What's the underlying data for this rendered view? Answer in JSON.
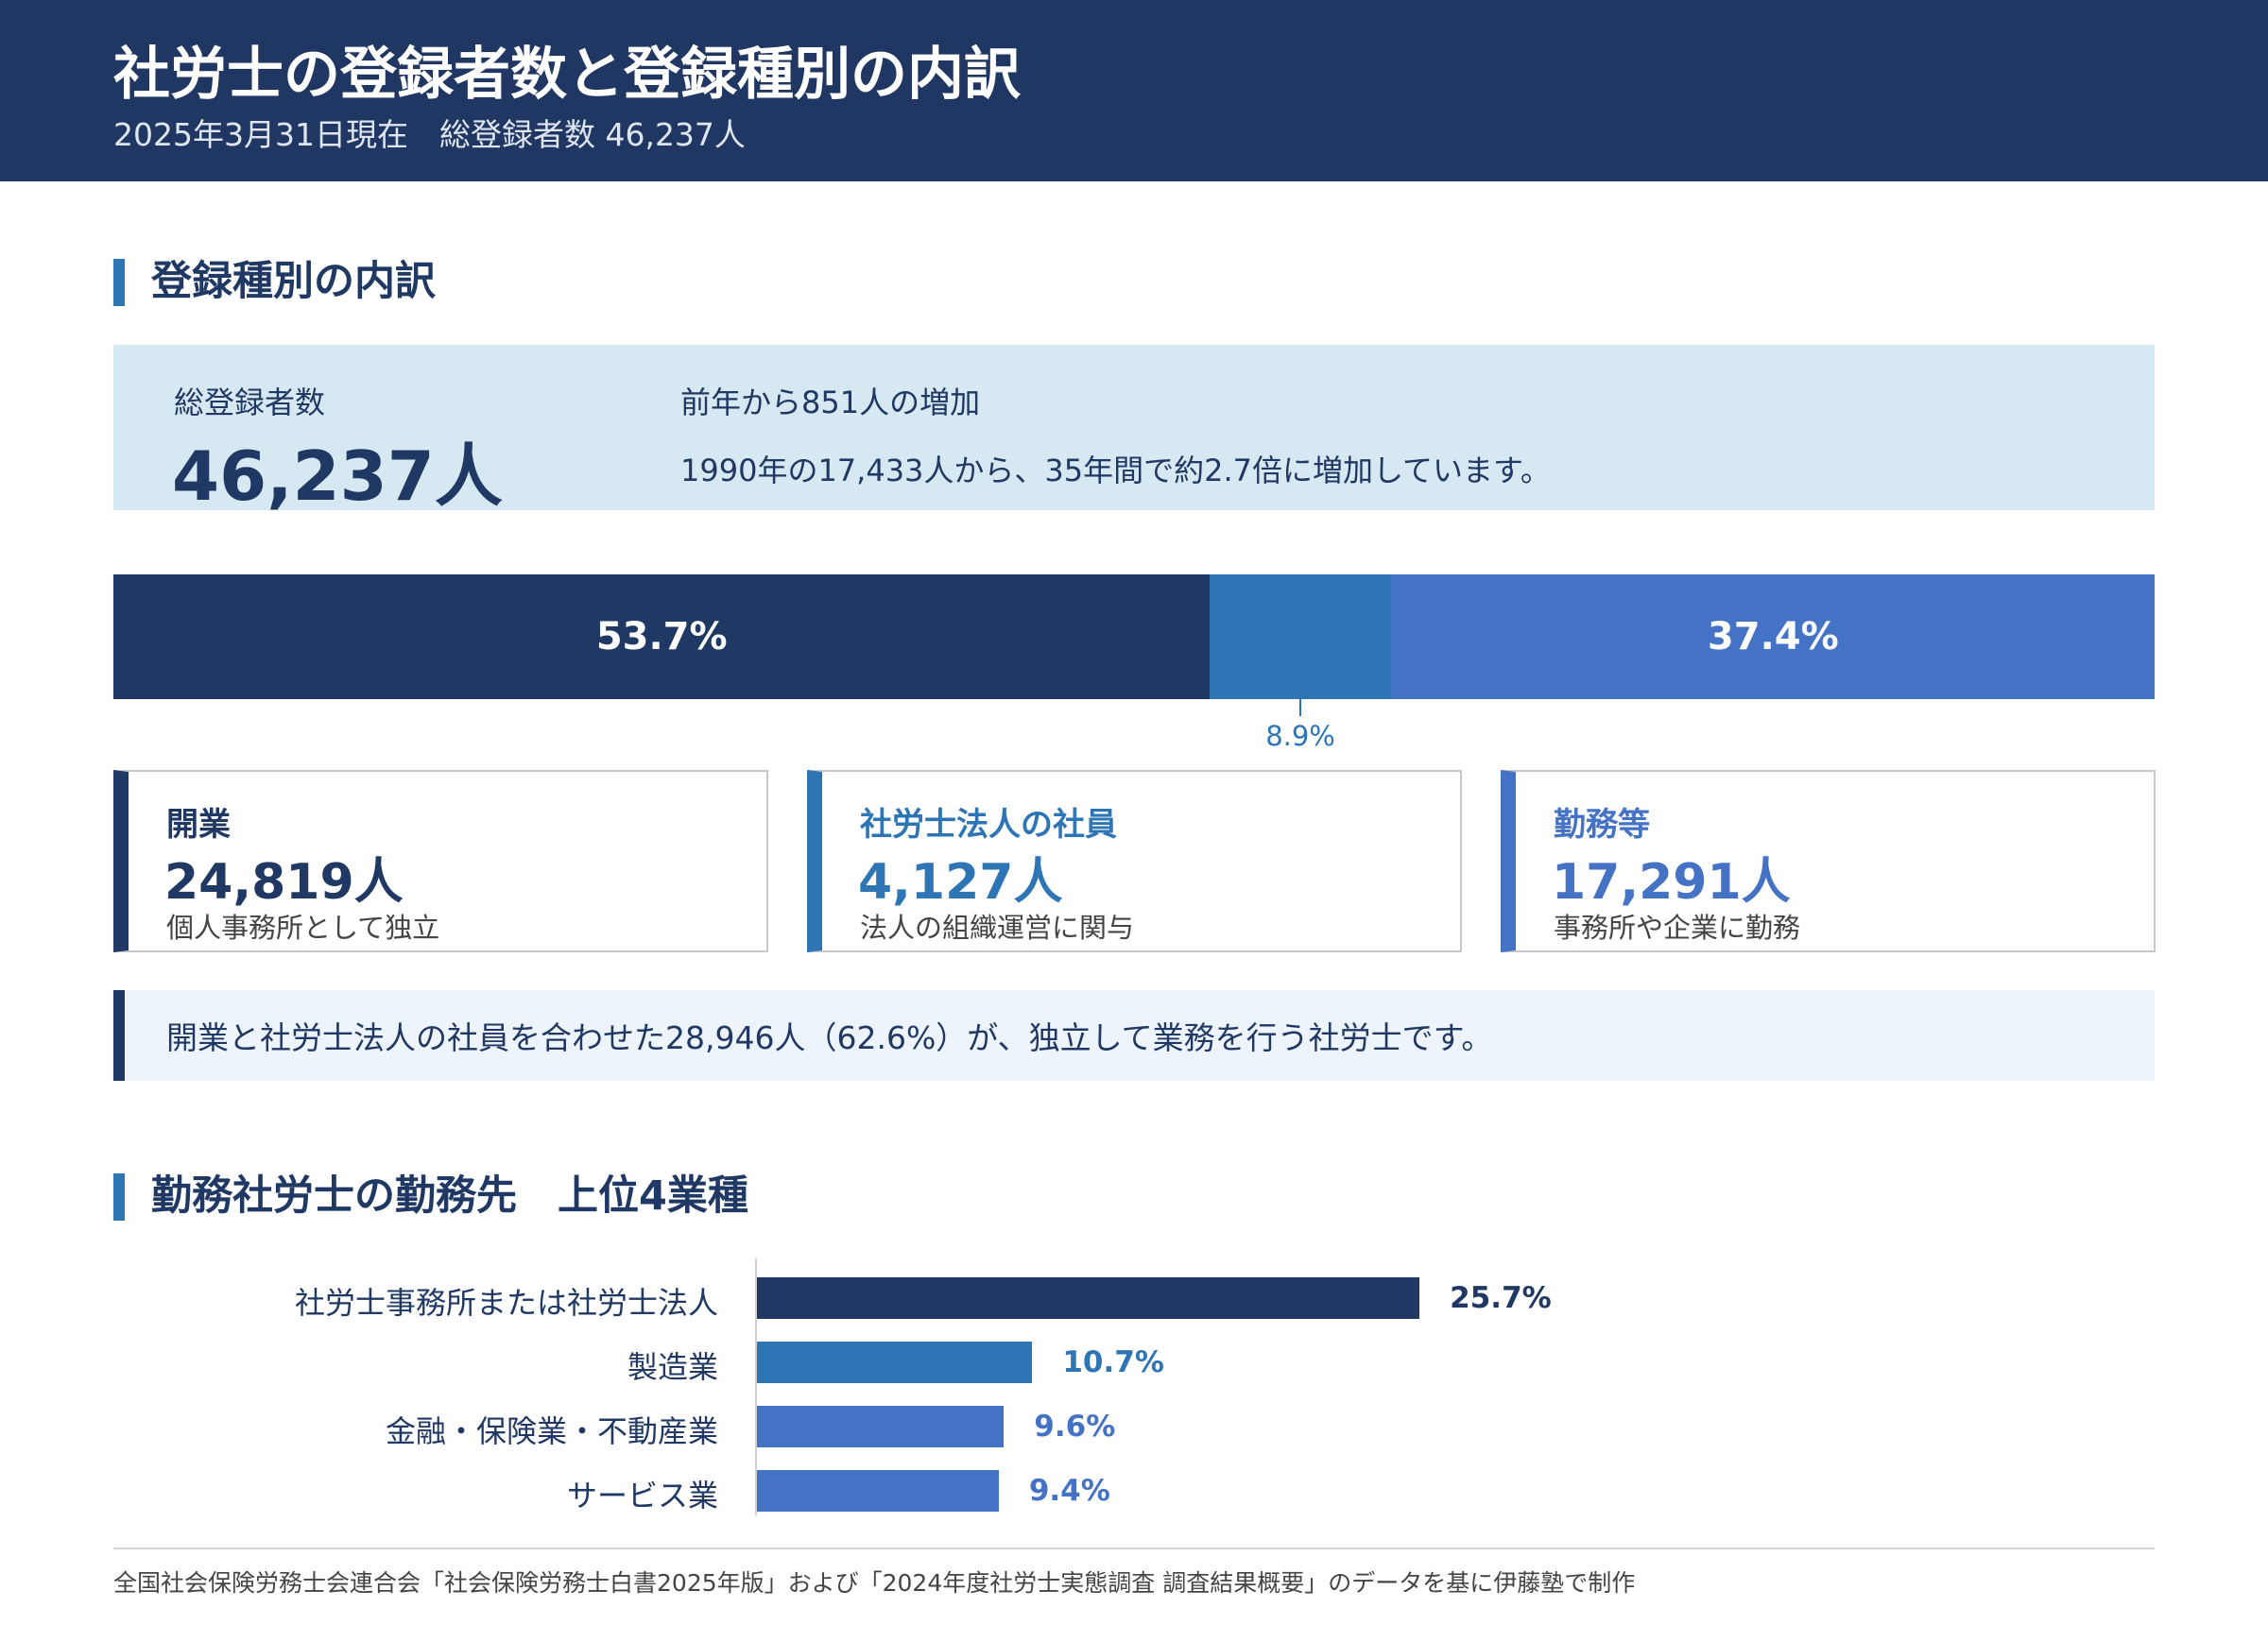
{
  "header": {
    "title": "社労士の登録者数と登録種別の内訳",
    "subtitle": "2025年3月31日現在　総登録者数 46,237人"
  },
  "section1": {
    "heading": "登録種別の内訳"
  },
  "summary": {
    "label": "総登録者数",
    "total": "46,237人",
    "note1": "前年から851人の増加",
    "note2": "1990年の17,433人から、35年間で約2.7倍に増加しています。"
  },
  "cards": [
    {
      "name": "開業",
      "value": "24,819人",
      "desc": "個人事務所として独立",
      "color": "#1f3864"
    },
    {
      "name": "社労士法人の社員",
      "value": "4,127人",
      "desc": "法人の組織運営に関与",
      "color": "#2e75b6"
    },
    {
      "name": "勤務等",
      "value": "17,291人",
      "desc": "事務所や企業に勤務",
      "color": "#4472c4"
    }
  ],
  "callout": "開業と社労士法人の社員を合わせた28,946人（62.6%）が、独立して業務を行う社労士です。",
  "section2": {
    "heading": "勤務社労士の勤務先　上位4業種"
  },
  "chart_data": [
    {
      "type": "bar",
      "orientation": "horizontal-stacked",
      "categories": [
        "開業",
        "社労士法人の社員",
        "勤務等"
      ],
      "values": [
        53.7,
        8.9,
        37.4
      ],
      "labels": [
        "53.7%",
        "8.9%",
        "37.4%"
      ],
      "colors": [
        "#1f3864",
        "#2e75b6",
        "#4472c4"
      ]
    },
    {
      "type": "bar",
      "orientation": "horizontal",
      "categories": [
        "社労士事務所または社労士法人",
        "製造業",
        "金融・保険業・不動産業",
        "サービス業"
      ],
      "values": [
        25.7,
        10.7,
        9.6,
        9.4
      ],
      "labels": [
        "25.7%",
        "10.7%",
        "9.6%",
        "9.4%"
      ],
      "colors": [
        "#1f3864",
        "#2e75b6",
        "#4472c4",
        "#4472c4"
      ],
      "xlim": [
        0,
        36.6
      ]
    }
  ],
  "footer": "全国社会保険労務士会連合会「社会保険労務士白書2025年版」および「2024年度社労士実態調査 調査結果概要」のデータを基に伊藤塾で制作"
}
